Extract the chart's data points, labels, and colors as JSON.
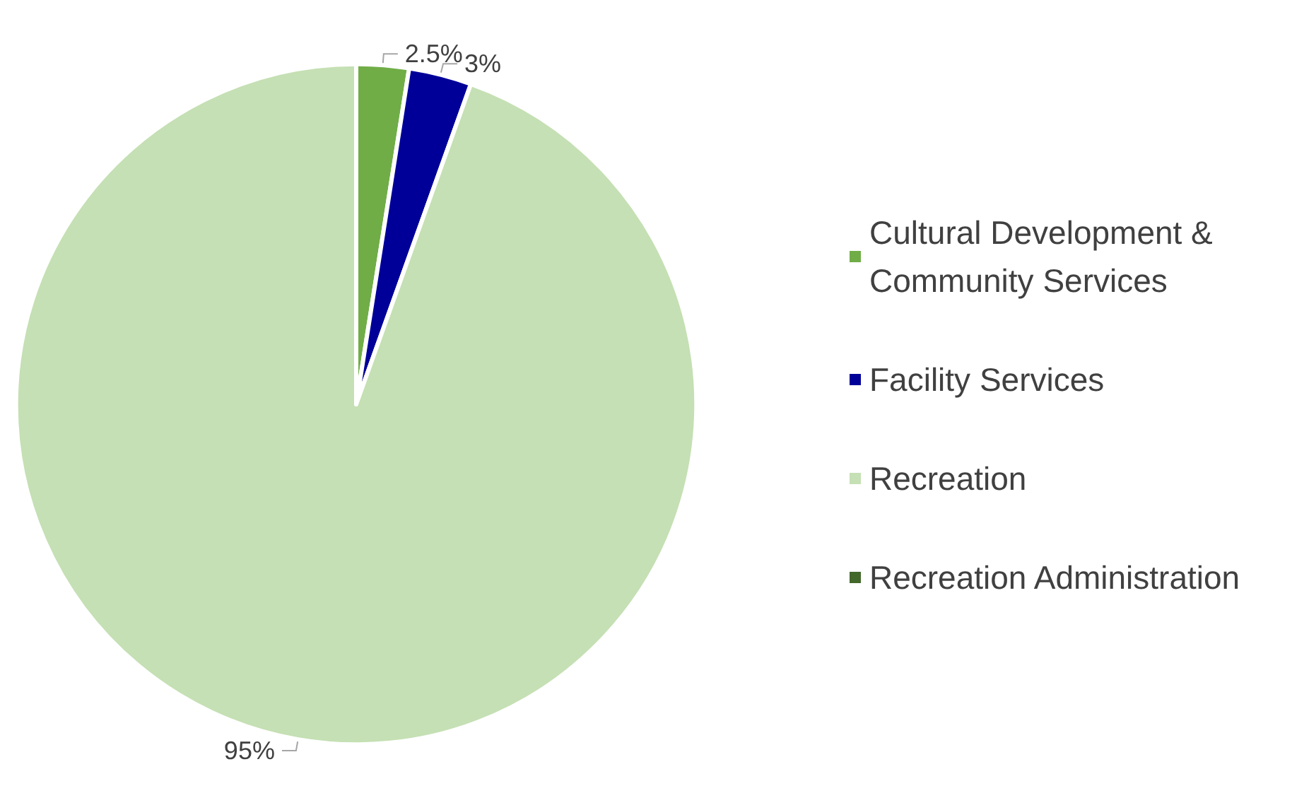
{
  "chart_data": {
    "type": "pie",
    "categories": [
      "Cultural Development & Community Services",
      "Facility Services",
      "Recreation",
      "Recreation Administration"
    ],
    "values": [
      2.5,
      3,
      95,
      0
    ],
    "colors": [
      "#70ad47",
      "#000099",
      "#c5e0b4",
      "#43682b"
    ],
    "value_labels": [
      "2.5%",
      "3%",
      "95%",
      null
    ],
    "legend": "right"
  }
}
